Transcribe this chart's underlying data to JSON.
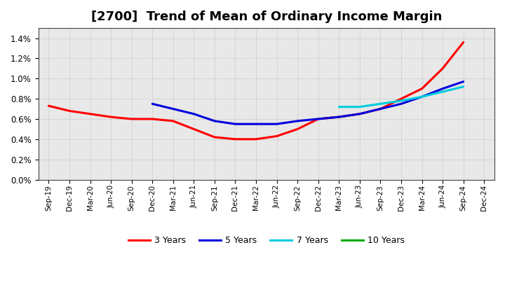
{
  "title": "[2700]  Trend of Mean of Ordinary Income Margin",
  "x_labels": [
    "Sep-19",
    "Dec-19",
    "Mar-20",
    "Jun-20",
    "Sep-20",
    "Dec-20",
    "Mar-21",
    "Jun-21",
    "Sep-21",
    "Dec-21",
    "Mar-22",
    "Jun-22",
    "Sep-22",
    "Dec-22",
    "Mar-23",
    "Jun-23",
    "Sep-23",
    "Dec-23",
    "Mar-24",
    "Jun-24",
    "Sep-24",
    "Dec-24"
  ],
  "series_3y": {
    "color": "#ff0000",
    "values": [
      0.0073,
      0.0068,
      0.0065,
      0.0062,
      0.006,
      0.006,
      0.0058,
      0.005,
      0.0042,
      0.004,
      0.004,
      0.0043,
      0.005,
      0.006,
      0.0062,
      0.0065,
      0.007,
      0.008,
      0.009,
      0.011,
      0.0136,
      null
    ]
  },
  "series_5y": {
    "color": "#0000dd",
    "values": [
      null,
      null,
      null,
      null,
      null,
      0.0075,
      0.007,
      0.0065,
      0.0058,
      0.0055,
      0.0055,
      0.0055,
      0.0058,
      0.006,
      0.0062,
      0.0065,
      0.007,
      0.0075,
      0.0082,
      0.009,
      0.0097,
      null
    ]
  },
  "series_7y": {
    "color": "#00ccdd",
    "values": [
      null,
      null,
      null,
      null,
      null,
      null,
      null,
      null,
      null,
      null,
      null,
      null,
      null,
      null,
      0.0072,
      0.0072,
      0.0075,
      0.0078,
      0.0082,
      0.0087,
      0.0092,
      null
    ]
  },
  "series_10y": {
    "color": "#00aa00",
    "values": [
      null,
      null,
      null,
      null,
      null,
      null,
      null,
      null,
      null,
      null,
      null,
      null,
      null,
      null,
      null,
      null,
      null,
      null,
      null,
      null,
      null,
      null
    ]
  },
  "ylim": [
    0.0,
    0.015
  ],
  "yticks": [
    0.0,
    0.002,
    0.004,
    0.006,
    0.008,
    0.01,
    0.012,
    0.014
  ],
  "plot_bg_color": "#e8e8e8",
  "fig_bg_color": "#ffffff",
  "grid_color": "#888888",
  "title_fontsize": 13,
  "legend_labels": [
    "3 Years",
    "5 Years",
    "7 Years",
    "10 Years"
  ],
  "legend_colors": [
    "#ff0000",
    "#0000dd",
    "#00ccdd",
    "#00aa00"
  ]
}
